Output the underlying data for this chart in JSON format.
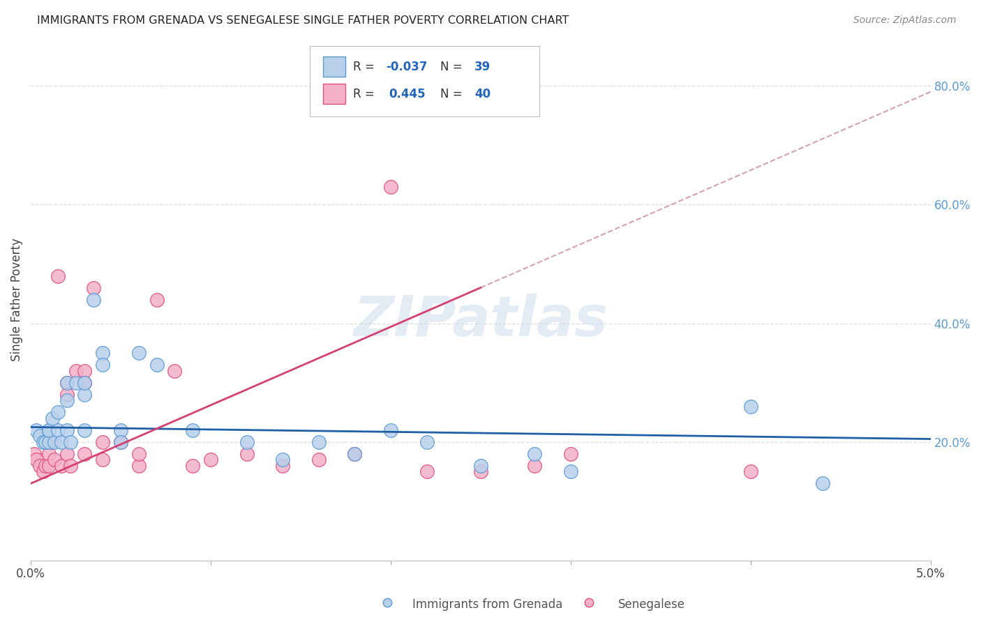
{
  "title": "IMMIGRANTS FROM GRENADA VS SENEGALESE SINGLE FATHER POVERTY CORRELATION CHART",
  "source": "Source: ZipAtlas.com",
  "ylabel": "Single Father Poverty",
  "right_yticks": [
    "20.0%",
    "40.0%",
    "60.0%",
    "80.0%"
  ],
  "right_ytick_vals": [
    0.2,
    0.4,
    0.6,
    0.8
  ],
  "xlim": [
    0.0,
    0.05
  ],
  "ylim": [
    0.0,
    0.88
  ],
  "label1": "Immigrants from Grenada",
  "label2": "Senegalese",
  "blue_scatter_x": [
    0.0003,
    0.0005,
    0.0007,
    0.0008,
    0.001,
    0.001,
    0.001,
    0.0012,
    0.0013,
    0.0015,
    0.0015,
    0.0017,
    0.002,
    0.002,
    0.002,
    0.0022,
    0.0025,
    0.003,
    0.003,
    0.003,
    0.0035,
    0.004,
    0.004,
    0.005,
    0.005,
    0.006,
    0.007,
    0.009,
    0.012,
    0.014,
    0.016,
    0.018,
    0.02,
    0.022,
    0.025,
    0.028,
    0.03,
    0.04,
    0.044
  ],
  "blue_scatter_y": [
    0.22,
    0.21,
    0.2,
    0.2,
    0.22,
    0.2,
    0.22,
    0.24,
    0.2,
    0.22,
    0.25,
    0.2,
    0.3,
    0.27,
    0.22,
    0.2,
    0.3,
    0.28,
    0.3,
    0.22,
    0.44,
    0.35,
    0.33,
    0.22,
    0.2,
    0.35,
    0.33,
    0.22,
    0.2,
    0.17,
    0.2,
    0.18,
    0.22,
    0.2,
    0.16,
    0.18,
    0.15,
    0.26,
    0.13
  ],
  "pink_scatter_x": [
    0.0002,
    0.0003,
    0.0005,
    0.0007,
    0.0008,
    0.001,
    0.001,
    0.001,
    0.0012,
    0.0013,
    0.0015,
    0.0017,
    0.002,
    0.002,
    0.002,
    0.0022,
    0.0025,
    0.003,
    0.003,
    0.003,
    0.0035,
    0.004,
    0.004,
    0.005,
    0.006,
    0.006,
    0.007,
    0.008,
    0.009,
    0.01,
    0.012,
    0.014,
    0.016,
    0.018,
    0.02,
    0.022,
    0.025,
    0.028,
    0.03,
    0.04
  ],
  "pink_scatter_y": [
    0.18,
    0.17,
    0.16,
    0.15,
    0.16,
    0.2,
    0.18,
    0.16,
    0.2,
    0.17,
    0.48,
    0.16,
    0.3,
    0.28,
    0.18,
    0.16,
    0.32,
    0.32,
    0.3,
    0.18,
    0.46,
    0.2,
    0.17,
    0.2,
    0.16,
    0.18,
    0.44,
    0.32,
    0.16,
    0.17,
    0.18,
    0.16,
    0.17,
    0.18,
    0.63,
    0.15,
    0.15,
    0.16,
    0.18,
    0.15
  ],
  "blue_line_x": [
    0.0,
    0.05
  ],
  "blue_line_y": [
    0.225,
    0.205
  ],
  "pink_line_x": [
    0.0,
    0.025
  ],
  "pink_line_y": [
    0.13,
    0.46
  ],
  "pink_dash_line_x": [
    0.025,
    0.05
  ],
  "pink_dash_line_y": [
    0.46,
    0.79
  ],
  "watermark": "ZIPatlas",
  "grid_color": "#dddddd",
  "blue_dot_color": "#5b9bd5",
  "blue_dot_fill": "#b8d0ea",
  "pink_dot_color": "#e05080",
  "pink_dot_fill": "#f4b0c8",
  "blue_line_color": "#1f5fa6",
  "pink_line_color": "#d44070",
  "pink_dash_color": "#d4a0b8"
}
